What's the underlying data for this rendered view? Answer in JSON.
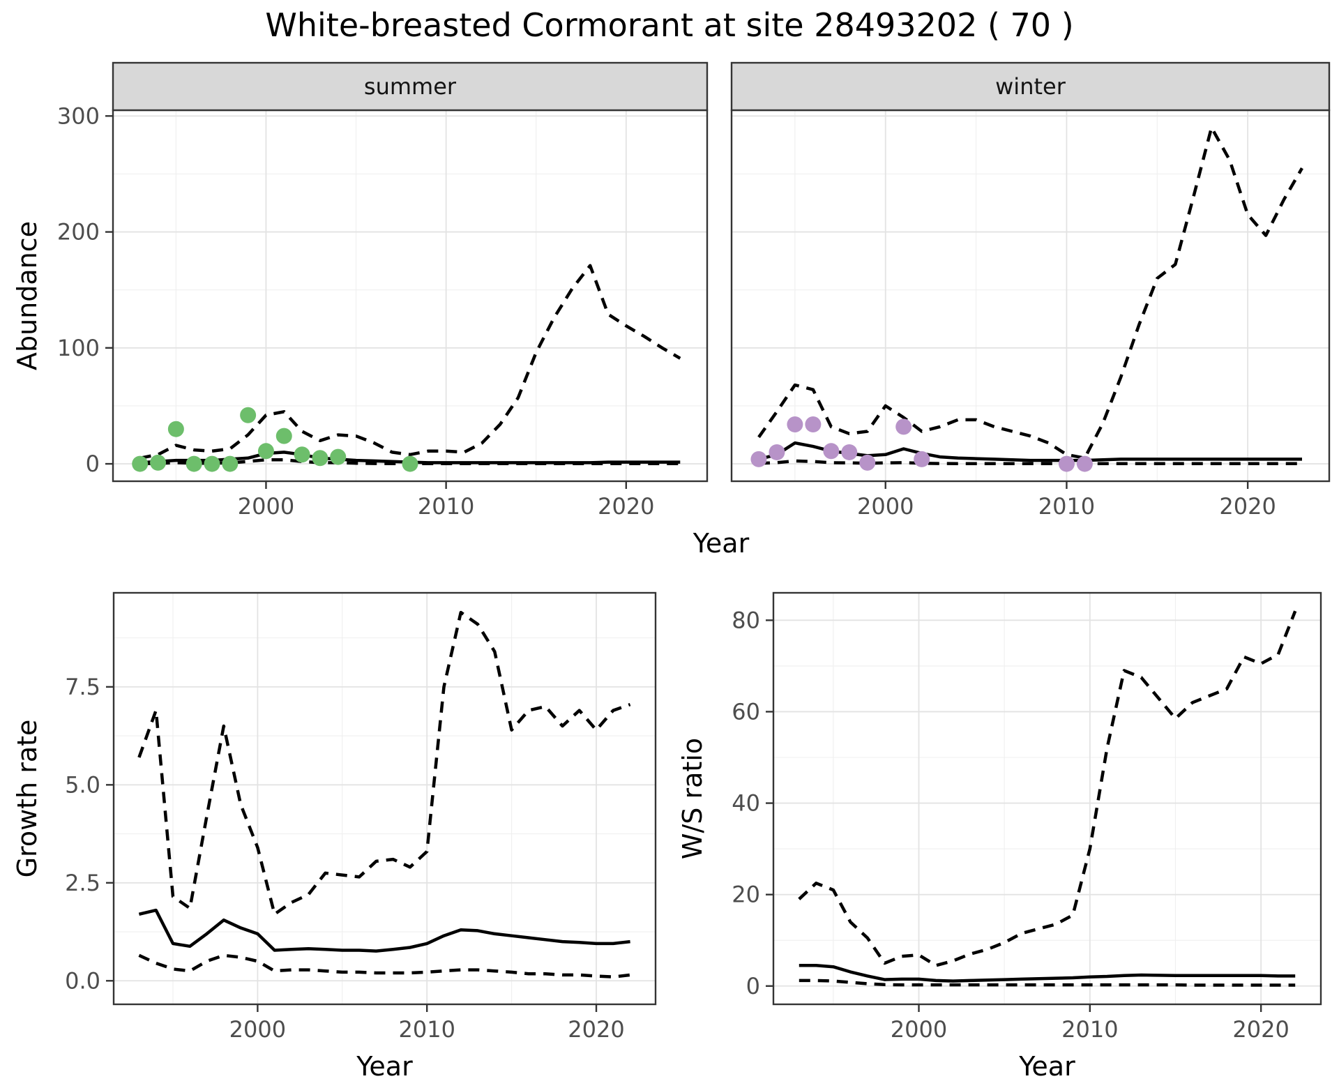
{
  "title": "White-breasted Cormorant at site 28493202 ( 70 )",
  "theme": {
    "panel_bg": "#ffffff",
    "grid_major": "#e3e3e3",
    "grid_minor": "#efefef",
    "panel_border": "#343434",
    "strip_bg": "#d8d8d8",
    "strip_border": "#343434",
    "tick_label_color": "#4d4d4d",
    "axis_title_color": "#000000",
    "line_color": "#000000",
    "summer_point_color": "#6dbe6b",
    "winter_point_color": "#b793c8"
  },
  "chart_data": [
    {
      "id": "abundance-summer",
      "type": "line",
      "facet_label": "summer",
      "xlabel": "Year",
      "ylabel": "Abundance",
      "xlim": [
        1991.5,
        2024.5
      ],
      "ylim": [
        -15,
        305
      ],
      "xticks": [
        2000,
        2010,
        2020
      ],
      "xtick_labels": [
        "2000",
        "2010",
        "2020"
      ],
      "yticks": [
        0,
        100,
        200,
        300
      ],
      "ytick_labels": [
        "0",
        "100",
        "200",
        "300"
      ],
      "grid": true,
      "legend": "none",
      "years": [
        1993,
        1994,
        1995,
        1996,
        1997,
        1998,
        1999,
        2000,
        2001,
        2002,
        2003,
        2004,
        2005,
        2006,
        2007,
        2008,
        2009,
        2010,
        2011,
        2012,
        2013,
        2014,
        2015,
        2016,
        2017,
        2018,
        2019,
        2020,
        2021,
        2022,
        2023
      ],
      "series": [
        {
          "name": "median_fit",
          "style": "solid",
          "values": [
            1,
            2,
            3,
            3,
            3,
            4,
            5,
            9,
            10,
            8,
            5,
            4,
            3,
            2.5,
            2,
            1.5,
            1,
            1,
            1,
            1,
            1,
            1,
            1,
            1,
            1,
            1,
            1.5,
            1.5,
            1.5,
            1.5,
            1.5
          ]
        },
        {
          "name": "upper_ci",
          "style": "dashed",
          "values": [
            5,
            8,
            16,
            12,
            11,
            13,
            25,
            42,
            45,
            28,
            20,
            25,
            24,
            18,
            10,
            8,
            11,
            11,
            10,
            18,
            34,
            57,
            96,
            126,
            151,
            171,
            129,
            119,
            110,
            100,
            91
          ]
        },
        {
          "name": "lower_ci",
          "style": "dashed",
          "values": [
            0.3,
            0.3,
            1,
            0.5,
            0.5,
            0.8,
            2,
            3.5,
            3.5,
            2,
            1,
            1,
            0.5,
            0.3,
            0.2,
            0.2,
            0.2,
            0.2,
            0.2,
            0.2,
            0.2,
            0.2,
            0.2,
            0.2,
            0.2,
            0.2,
            0.2,
            0.2,
            0.2,
            0.2,
            0.2
          ]
        }
      ],
      "points": {
        "name": "observed_counts",
        "color": "#6dbe6b",
        "data": [
          [
            1993,
            0
          ],
          [
            1994,
            1
          ],
          [
            1995,
            30
          ],
          [
            1996,
            0
          ],
          [
            1997,
            0
          ],
          [
            1998,
            0
          ],
          [
            1999,
            42
          ],
          [
            2000,
            11
          ],
          [
            2001,
            24
          ],
          [
            2002,
            8
          ],
          [
            2003,
            5
          ],
          [
            2004,
            6
          ],
          [
            2008,
            0
          ]
        ]
      }
    },
    {
      "id": "abundance-winter",
      "type": "line",
      "facet_label": "winter",
      "xlabel": "Year",
      "ylabel": "Abundance",
      "xlim": [
        1991.5,
        2024.5
      ],
      "ylim": [
        -15,
        305
      ],
      "xticks": [
        2000,
        2010,
        2020
      ],
      "xtick_labels": [
        "2000",
        "2010",
        "2020"
      ],
      "yticks": [
        0,
        100,
        200,
        300
      ],
      "ytick_labels": [
        "0",
        "100",
        "200",
        "300"
      ],
      "grid": true,
      "legend": "none",
      "years": [
        1993,
        1994,
        1995,
        1996,
        1997,
        1998,
        1999,
        2000,
        2001,
        2002,
        2003,
        2004,
        2005,
        2006,
        2007,
        2008,
        2009,
        2010,
        2011,
        2012,
        2013,
        2014,
        2015,
        2016,
        2017,
        2018,
        2019,
        2020,
        2021,
        2022,
        2023
      ],
      "series": [
        {
          "name": "median_fit",
          "style": "solid",
          "values": [
            4,
            8,
            18,
            15,
            11,
            9,
            7,
            8,
            13,
            9,
            6,
            5,
            4.5,
            4,
            3.5,
            3,
            3,
            3,
            3,
            3.5,
            4,
            4,
            4,
            4,
            4,
            4,
            4,
            4,
            4,
            4,
            4
          ]
        },
        {
          "name": "upper_ci",
          "style": "dashed",
          "values": [
            23,
            45,
            68,
            64,
            32,
            26,
            28,
            50,
            40,
            28,
            32,
            38,
            38,
            32,
            28,
            24,
            18,
            8,
            5,
            35,
            75,
            120,
            160,
            172,
            230,
            290,
            262,
            215,
            197,
            228,
            255
          ]
        },
        {
          "name": "lower_ci",
          "style": "dashed",
          "values": [
            0.5,
            1,
            2.5,
            2,
            1,
            0.8,
            0.5,
            0.8,
            1,
            0.5,
            0.3,
            0.2,
            0.2,
            0.2,
            0.2,
            0.2,
            0.2,
            0.2,
            0.2,
            0.2,
            0.2,
            0.2,
            0.2,
            0.2,
            0.2,
            0.2,
            0.2,
            0.2,
            0.2,
            0.2,
            0.2
          ]
        }
      ],
      "points": {
        "name": "observed_counts",
        "color": "#b793c8",
        "data": [
          [
            1993,
            4
          ],
          [
            1994,
            10
          ],
          [
            1995,
            34
          ],
          [
            1996,
            34
          ],
          [
            1997,
            11
          ],
          [
            1998,
            10
          ],
          [
            1999,
            1
          ],
          [
            2001,
            32
          ],
          [
            2002,
            4
          ],
          [
            2010,
            0
          ],
          [
            2011,
            0
          ]
        ]
      }
    },
    {
      "id": "growth-rate",
      "type": "line",
      "facet_label": "",
      "xlabel": "Year",
      "ylabel": "Growth rate",
      "xlim": [
        1991.5,
        2023.5
      ],
      "ylim": [
        -0.6,
        9.9
      ],
      "xticks": [
        2000,
        2010,
        2020
      ],
      "xtick_labels": [
        "2000",
        "2010",
        "2020"
      ],
      "yticks": [
        0,
        2.5,
        5,
        7.5
      ],
      "ytick_labels": [
        "0.0",
        "2.5",
        "5.0",
        "7.5"
      ],
      "grid": true,
      "legend": "none",
      "years": [
        1993,
        1994,
        1995,
        1996,
        1997,
        1998,
        1999,
        2000,
        2001,
        2002,
        2003,
        2004,
        2005,
        2006,
        2007,
        2008,
        2009,
        2010,
        2011,
        2012,
        2013,
        2014,
        2015,
        2016,
        2017,
        2018,
        2019,
        2020,
        2021,
        2022
      ],
      "series": [
        {
          "name": "median_fit",
          "style": "solid",
          "values": [
            1.7,
            1.8,
            0.95,
            0.88,
            1.2,
            1.55,
            1.35,
            1.2,
            0.78,
            0.8,
            0.82,
            0.8,
            0.78,
            0.78,
            0.76,
            0.8,
            0.85,
            0.95,
            1.15,
            1.3,
            1.28,
            1.2,
            1.15,
            1.1,
            1.05,
            1.0,
            0.98,
            0.95,
            0.95,
            1.0
          ]
        },
        {
          "name": "upper_ci",
          "style": "dashed",
          "values": [
            5.7,
            6.9,
            2.15,
            1.85,
            4.2,
            6.5,
            4.5,
            3.4,
            1.7,
            2.0,
            2.2,
            2.75,
            2.7,
            2.65,
            3.05,
            3.1,
            2.9,
            3.3,
            7.5,
            9.4,
            9.1,
            8.4,
            6.4,
            6.9,
            7.0,
            6.5,
            6.9,
            6.4,
            6.9,
            7.05
          ]
        },
        {
          "name": "lower_ci",
          "style": "dashed",
          "values": [
            0.65,
            0.45,
            0.3,
            0.25,
            0.5,
            0.65,
            0.6,
            0.5,
            0.25,
            0.28,
            0.28,
            0.25,
            0.22,
            0.22,
            0.2,
            0.2,
            0.2,
            0.22,
            0.25,
            0.28,
            0.28,
            0.25,
            0.22,
            0.18,
            0.18,
            0.15,
            0.15,
            0.12,
            0.1,
            0.15
          ]
        }
      ],
      "points": null
    },
    {
      "id": "ws-ratio",
      "type": "line",
      "facet_label": "",
      "xlabel": "Year",
      "ylabel": "W/S ratio",
      "xlim": [
        1991.5,
        2023.5
      ],
      "ylim": [
        -4,
        86
      ],
      "xticks": [
        2000,
        2010,
        2020
      ],
      "xtick_labels": [
        "2000",
        "2010",
        "2020"
      ],
      "yticks": [
        0,
        20,
        40,
        60,
        80
      ],
      "ytick_labels": [
        "0",
        "20",
        "40",
        "60",
        "80"
      ],
      "grid": true,
      "legend": "none",
      "years": [
        1993,
        1994,
        1995,
        1996,
        1997,
        1998,
        1999,
        2000,
        2001,
        2002,
        2003,
        2004,
        2005,
        2006,
        2007,
        2008,
        2009,
        2010,
        2011,
        2012,
        2013,
        2014,
        2015,
        2016,
        2017,
        2018,
        2019,
        2020,
        2021,
        2022
      ],
      "series": [
        {
          "name": "median_fit",
          "style": "solid",
          "values": [
            4.5,
            4.5,
            4.2,
            3.1,
            2.2,
            1.4,
            1.5,
            1.5,
            1.2,
            1.1,
            1.2,
            1.3,
            1.4,
            1.5,
            1.6,
            1.7,
            1.8,
            2.0,
            2.1,
            2.3,
            2.4,
            2.35,
            2.3,
            2.3,
            2.3,
            2.3,
            2.3,
            2.3,
            2.2,
            2.2
          ]
        },
        {
          "name": "upper_ci",
          "style": "dashed",
          "values": [
            19,
            22.5,
            21,
            14,
            10.5,
            5,
            6.5,
            6.8,
            4.5,
            5.5,
            7,
            8,
            9.5,
            11.5,
            12.5,
            13.5,
            15.5,
            30,
            52,
            69,
            67.5,
            63,
            58.5,
            62,
            63.5,
            65,
            72,
            70.5,
            72.5,
            82
          ]
        },
        {
          "name": "lower_ci",
          "style": "dashed",
          "values": [
            1.2,
            1.2,
            1.1,
            0.8,
            0.5,
            0.3,
            0.25,
            0.25,
            0.25,
            0.25,
            0.25,
            0.25,
            0.25,
            0.25,
            0.25,
            0.25,
            0.25,
            0.25,
            0.25,
            0.25,
            0.25,
            0.25,
            0.25,
            0.2,
            0.2,
            0.2,
            0.2,
            0.2,
            0.2,
            0.2
          ]
        }
      ],
      "points": null
    }
  ]
}
